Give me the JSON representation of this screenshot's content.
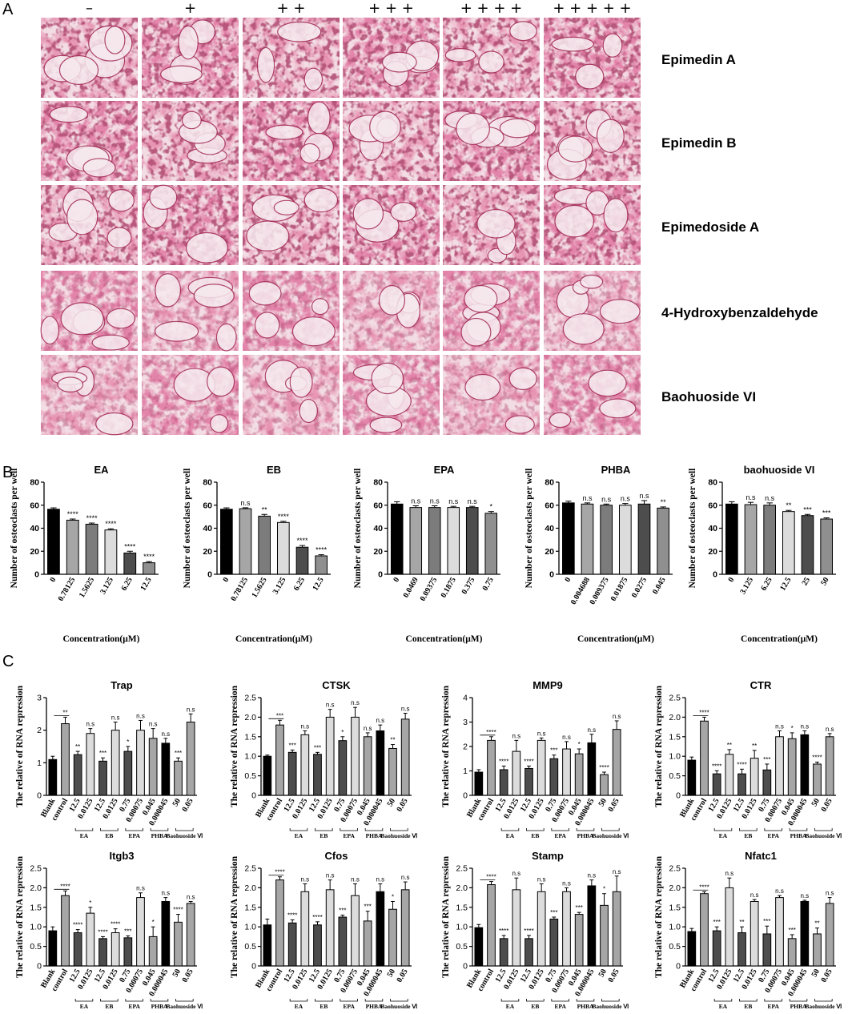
{
  "panel_A": {
    "letter": "A",
    "dose_headers": [
      "–",
      "+",
      "+ +",
      "+ + +",
      "+ + + +",
      "+ + + + +"
    ],
    "rows": [
      "Epimedin A",
      "Epimedin B",
      "Epimedoside A",
      "4-Hydroxybenzaldehyde",
      "Baohuoside VI"
    ]
  },
  "panel_B_letter": "B",
  "panel_C_letter": "C",
  "colors": {
    "bar_black": "#000000",
    "bar_grey1": "#a6a6a6",
    "bar_grey2": "#7c7c7c",
    "bar_light": "#dcdcdc",
    "bar_dark": "#4d4d4d",
    "bar_mid": "#8f8f8f",
    "stain_magenta": "#c43a66",
    "stain_light": "#f3dde4"
  },
  "chart_data": [
    {
      "id": "EA",
      "type": "bar",
      "title": "EA",
      "xlabel": "Concentration(μM)",
      "ylabel": "Number of osteoclasts per well",
      "categories": [
        "0",
        "0.78125",
        "1.5625",
        "3.125",
        "6.25",
        "12.5"
      ],
      "values": [
        56.5,
        47,
        43.5,
        38.5,
        18.5,
        10
      ],
      "errors": [
        1.2,
        1,
        1,
        1,
        1.5,
        1
      ],
      "significance": [
        "",
        "****",
        "****",
        "****",
        "****",
        "****"
      ],
      "ylim": [
        0,
        80
      ],
      "yticks": [
        "0",
        "20",
        "40",
        "60",
        "80"
      ]
    },
    {
      "id": "EB",
      "type": "bar",
      "title": "EB",
      "xlabel": "Concentration(μM)",
      "ylabel": "Number of osteoclasts per well",
      "categories": [
        "0",
        "0.78125",
        "1.5625",
        "3.125",
        "6.25",
        "12.5"
      ],
      "values": [
        56.5,
        57,
        50.5,
        45,
        23.5,
        16
      ],
      "errors": [
        1.2,
        0.8,
        1.5,
        1,
        1.5,
        1
      ],
      "significance": [
        "",
        "n.s",
        "**",
        "****",
        "****",
        "****"
      ],
      "ylim": [
        0,
        80
      ],
      "yticks": [
        "0",
        "20",
        "40",
        "60",
        "80"
      ]
    },
    {
      "id": "EPA",
      "type": "bar",
      "title": "EPA",
      "xlabel": "Concentration(μM)",
      "ylabel": "Number of osteoclasts per well",
      "categories": [
        "0",
        "0.0469",
        "0.09375",
        "0.1875",
        "0.375",
        "0.75"
      ],
      "values": [
        61,
        58,
        58,
        58,
        58,
        53
      ],
      "errors": [
        2,
        1.5,
        1.5,
        1,
        1,
        1.5
      ],
      "significance": [
        "",
        "n.s",
        "n.s",
        "n.s",
        "n.s",
        "*"
      ],
      "ylim": [
        0,
        80
      ],
      "yticks": [
        "0",
        "20",
        "40",
        "60",
        "80"
      ]
    },
    {
      "id": "PHBA",
      "type": "bar",
      "title": "PHBA",
      "xlabel": "Concentration(μM)",
      "ylabel": "Number of osteoclasts per well",
      "categories": [
        "0",
        "0.004688",
        "0.009375",
        "0.01875",
        "0.0275",
        "0.045"
      ],
      "values": [
        62,
        61,
        60,
        60,
        61,
        57.5
      ],
      "errors": [
        1.5,
        1,
        1,
        1.5,
        3,
        1
      ],
      "significance": [
        "",
        "n.s",
        "n.s",
        "n.s",
        "n.s",
        "**"
      ],
      "ylim": [
        0,
        80
      ],
      "yticks": [
        "0",
        "20",
        "40",
        "60",
        "80"
      ]
    },
    {
      "id": "baohuoside VI",
      "type": "bar",
      "title": "baohuoside VI",
      "xlabel": "Concentration(μM)",
      "ylabel": "Number of osteoclasts per well",
      "categories": [
        "0",
        "3.125",
        "6.25",
        "12.5",
        "25",
        "50"
      ],
      "values": [
        61,
        60.5,
        60,
        54.5,
        51,
        48
      ],
      "errors": [
        2,
        2,
        2,
        1,
        1,
        1
      ],
      "significance": [
        "",
        "n.s",
        "n.s",
        "**",
        "***",
        "***"
      ],
      "ylim": [
        0,
        80
      ],
      "yticks": [
        "0",
        "20",
        "40",
        "60",
        "80"
      ]
    },
    {
      "id": "Trap",
      "type": "bar",
      "title": "Trap",
      "ylabel": "The relative of RNA repression",
      "categories": [
        "Blank",
        "control",
        "12.5",
        "0.0125",
        "12.5",
        "0.0125",
        "0.75",
        "0.00075",
        "0.045",
        "0.000045",
        "50",
        "0.05"
      ],
      "values": [
        1.1,
        2.2,
        1.25,
        1.9,
        1.05,
        2.0,
        1.35,
        2.0,
        1.75,
        1.6,
        1.05,
        2.25
      ],
      "errors": [
        0.1,
        0.2,
        0.1,
        0.15,
        0.1,
        0.25,
        0.15,
        0.3,
        0.3,
        0.15,
        0.1,
        0.25
      ],
      "significance": [
        "",
        "**",
        "**",
        "n.s",
        "***",
        "n.s",
        "*",
        "n.s",
        "n.s",
        "n.s",
        "***",
        "n.s"
      ],
      "groups": [
        "EA",
        "EB",
        "EPA",
        "PHBA",
        "Baohuoside Ⅵ"
      ],
      "ylim": [
        0,
        3
      ],
      "yticks": [
        "0",
        "1",
        "2",
        "3"
      ]
    },
    {
      "id": "CTSK",
      "type": "bar",
      "title": "CTSK",
      "ylabel": "The relative of RNA repression",
      "categories": [
        "Blank",
        "control",
        "12.5",
        "0.0125",
        "12.5",
        "0.0125",
        "0.75",
        "0.00075",
        "0.045",
        "0.000045",
        "50",
        "0.05"
      ],
      "values": [
        1.0,
        1.8,
        1.1,
        1.55,
        1.05,
        2.0,
        1.4,
        2.0,
        1.5,
        1.65,
        1.2,
        1.95
      ],
      "errors": [
        0.03,
        0.12,
        0.06,
        0.1,
        0.05,
        0.2,
        0.1,
        0.25,
        0.1,
        0.15,
        0.1,
        0.15
      ],
      "significance": [
        "",
        "***",
        "***",
        "n.s",
        "***",
        "n.s",
        "*",
        "n.s",
        "n.s",
        "n.s",
        "**",
        "n.s"
      ],
      "groups": [
        "EA",
        "EB",
        "EPA",
        "PHBA",
        "Baohuoside Ⅵ"
      ],
      "ylim": [
        0,
        2.5
      ],
      "yticks": [
        "0",
        "0.5",
        "1.0",
        "1.5",
        "2.0",
        "2.5"
      ]
    },
    {
      "id": "MMP9",
      "type": "bar",
      "title": "MMP9",
      "ylabel": "The relative of RNA repression",
      "categories": [
        "Blank",
        "control",
        "12.5",
        "0.0125",
        "12.5",
        "0.0125",
        "0.75",
        "0.00075",
        "0.045",
        "0.000045",
        "50",
        "0.05"
      ],
      "values": [
        0.95,
        2.25,
        1.05,
        1.8,
        1.1,
        2.25,
        1.5,
        1.9,
        1.7,
        2.15,
        0.85,
        2.7
      ],
      "errors": [
        0.1,
        0.15,
        0.15,
        0.45,
        0.1,
        0.1,
        0.15,
        0.3,
        0.2,
        0.35,
        0.1,
        0.35
      ],
      "significance": [
        "",
        "****",
        "****",
        "n.s",
        "****",
        "n.s",
        "***",
        "n.s",
        "*",
        "n.s",
        "****",
        "n.s"
      ],
      "groups": [
        "EA",
        "EB",
        "EPA",
        "PHBA",
        "Baohuoside Ⅵ"
      ],
      "ylim": [
        0,
        4
      ],
      "yticks": [
        "0",
        "1",
        "2",
        "3",
        "4"
      ]
    },
    {
      "id": "CTR",
      "type": "bar",
      "title": "CTR",
      "ylabel": "The relative of RNA repression",
      "categories": [
        "Blank",
        "control",
        "12.5",
        "0.0125",
        "12.5",
        "0.0125",
        "0.75",
        "0.00075",
        "0.045",
        "0.000045",
        "50",
        "0.05"
      ],
      "values": [
        0.9,
        1.9,
        0.55,
        1.05,
        0.55,
        0.95,
        0.65,
        1.5,
        1.45,
        1.55,
        0.8,
        1.5
      ],
      "errors": [
        0.08,
        0.1,
        0.08,
        0.12,
        0.12,
        0.2,
        0.15,
        0.15,
        0.15,
        0.1,
        0.05,
        0.08
      ],
      "significance": [
        "",
        "****",
        "****",
        "**",
        "****",
        "**",
        "***",
        "n.s",
        "*",
        "n.s",
        "****",
        "n.s"
      ],
      "groups": [
        "EA",
        "EB",
        "EPA",
        "PHBA",
        "Baohuoside Ⅵ"
      ],
      "ylim": [
        0,
        2.5
      ],
      "yticks": [
        "0",
        "0.5",
        "1.0",
        "1.5",
        "2.0",
        "2.5"
      ]
    },
    {
      "id": "Itgb3",
      "type": "bar",
      "title": "Itgb3",
      "ylabel": "The relative of RNA repression",
      "categories": [
        "Blank",
        "control",
        "12.5",
        "0.0125",
        "12.5",
        "0.0125",
        "0.75",
        "0.00075",
        "0.045",
        "0.000045",
        "50",
        "0.05"
      ],
      "values": [
        0.9,
        1.8,
        0.85,
        1.35,
        0.7,
        0.85,
        0.72,
        1.75,
        0.75,
        1.65,
        1.12,
        1.6
      ],
      "errors": [
        0.1,
        0.12,
        0.08,
        0.15,
        0.05,
        0.1,
        0.05,
        0.12,
        0.25,
        0.1,
        0.2,
        0.05
      ],
      "significance": [
        "",
        "****",
        "****",
        "*",
        "****",
        "****",
        "***",
        "n.s",
        "*",
        "n.s",
        "****",
        "n.s"
      ],
      "groups": [
        "EA",
        "EB",
        "EPA",
        "PHBA",
        "Baohuoside Ⅵ"
      ],
      "ylim": [
        0,
        2.5
      ],
      "yticks": [
        "0",
        "0.5",
        "1.0",
        "1.5",
        "2.0",
        "2.5"
      ]
    },
    {
      "id": "Cfos",
      "type": "bar",
      "title": "Cfos",
      "ylabel": "The relative of RNA repression",
      "categories": [
        "Blank",
        "control",
        "12.5",
        "0.0125",
        "12.5",
        "0.0125",
        "0.75",
        "0.00075",
        "0.045",
        "0.000045",
        "50",
        "0.05"
      ],
      "values": [
        1.05,
        2.2,
        1.1,
        1.9,
        1.05,
        1.95,
        1.25,
        1.8,
        1.15,
        1.9,
        1.45,
        1.95
      ],
      "errors": [
        0.15,
        0.08,
        0.08,
        0.2,
        0.08,
        0.25,
        0.05,
        0.3,
        0.25,
        0.2,
        0.2,
        0.2
      ],
      "significance": [
        "",
        "****",
        "****",
        "n.s",
        "****",
        "n.s",
        "***",
        "n.s",
        "***",
        "n.s",
        "*",
        "n.s"
      ],
      "groups": [
        "EA",
        "EB",
        "EPA",
        "PHBA",
        "Baohuoside Ⅵ"
      ],
      "ylim": [
        0,
        2.5
      ],
      "yticks": [
        "0",
        "0.5",
        "1.0",
        "1.5",
        "2.0",
        "2.5"
      ]
    },
    {
      "id": "Stamp",
      "type": "bar",
      "title": "Stamp",
      "ylabel": "The relative of RNA repression",
      "categories": [
        "Blank",
        "control",
        "12.5",
        "0.0125",
        "12.5",
        "0.0125",
        "0.75",
        "0.00075",
        "0.045",
        "0.000045",
        "50",
        "0.05"
      ],
      "values": [
        0.98,
        2.08,
        0.7,
        1.95,
        0.7,
        1.9,
        1.2,
        1.9,
        1.32,
        2.05,
        1.55,
        1.9
      ],
      "errors": [
        0.08,
        0.08,
        0.08,
        0.3,
        0.08,
        0.2,
        0.05,
        0.1,
        0.05,
        0.15,
        0.3,
        0.4
      ],
      "significance": [
        "",
        "****",
        "****",
        "n.s",
        "****",
        "n.s",
        "***",
        "n.s",
        "***",
        "n.s",
        "*",
        "n.s"
      ],
      "groups": [
        "EA",
        "EB",
        "EPA",
        "PHBA",
        "Baohuoside Ⅵ"
      ],
      "ylim": [
        0,
        2.5
      ],
      "yticks": [
        "0",
        "0.5",
        "1.0",
        "1.5",
        "2.0",
        "2.5"
      ]
    },
    {
      "id": "Nfatc1",
      "type": "bar",
      "title": "Nfatc1",
      "ylabel": "The relative of RNA repression",
      "categories": [
        "Blank",
        "control",
        "12.5",
        "0.0125",
        "12.5",
        "0.0125",
        "0.75",
        "0.00075",
        "0.045",
        "0.000045",
        "50",
        "0.05"
      ],
      "values": [
        0.88,
        1.85,
        0.9,
        2.0,
        0.85,
        1.65,
        0.82,
        1.75,
        0.7,
        1.65,
        0.82,
        1.6
      ],
      "errors": [
        0.08,
        0.05,
        0.1,
        0.25,
        0.15,
        0.05,
        0.2,
        0.05,
        0.1,
        0.03,
        0.15,
        0.15
      ],
      "significance": [
        "",
        "****",
        "***",
        "n.s",
        "**",
        "n.s",
        "***",
        "n.s",
        "***",
        "n.s",
        "**",
        "n.s"
      ],
      "groups": [
        "EA",
        "EB",
        "EPA",
        "PHBA",
        "Baohuoside Ⅵ"
      ],
      "ylim": [
        0,
        2.5
      ],
      "yticks": [
        "0",
        "0.5",
        "1.0",
        "1.5",
        "2.0",
        "2.5"
      ]
    }
  ]
}
